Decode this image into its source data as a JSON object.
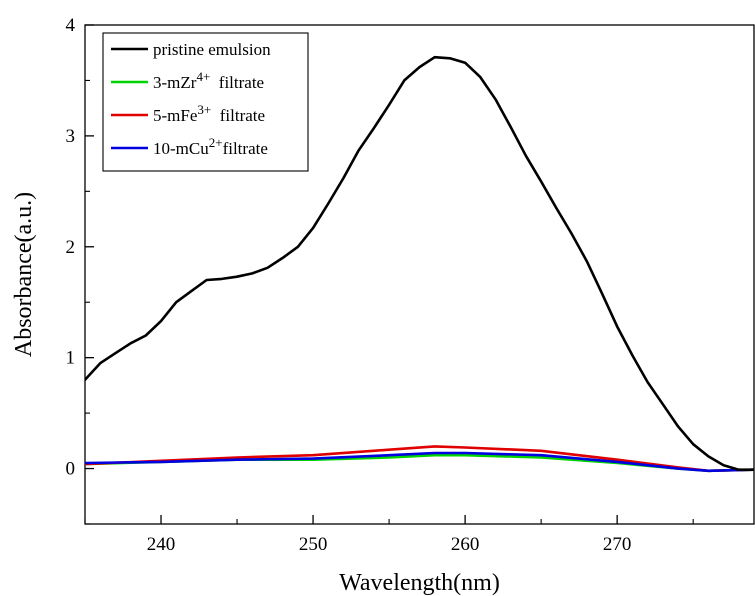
{
  "chart_data": {
    "type": "line",
    "title": "",
    "xlabel": "Wavelength(nm)",
    "ylabel": "Absorbance(a.u.)",
    "xlim": [
      235,
      279
    ],
    "ylim": [
      -0.5,
      4
    ],
    "x_ticks": [
      240,
      250,
      260,
      270
    ],
    "y_ticks": [
      0,
      1,
      2,
      3,
      4
    ],
    "grid": false,
    "legend_position": "top-left",
    "series": [
      {
        "name": "pristine emulsion",
        "legend_parts": [
          {
            "t": "pristine emulsion",
            "sup": false
          }
        ],
        "color": "#000000",
        "x": [
          235,
          236,
          237,
          238,
          239,
          240,
          241,
          242,
          243,
          244,
          245,
          246,
          247,
          248,
          249,
          250,
          251,
          252,
          253,
          254,
          255,
          256,
          257,
          258,
          259,
          260,
          261,
          262,
          263,
          264,
          265,
          266,
          267,
          268,
          269,
          270,
          271,
          272,
          273,
          274,
          275,
          276,
          277,
          278,
          279
        ],
        "y": [
          0.8,
          0.95,
          1.04,
          1.13,
          1.2,
          1.33,
          1.5,
          1.6,
          1.7,
          1.71,
          1.73,
          1.76,
          1.81,
          1.9,
          2.0,
          2.17,
          2.39,
          2.62,
          2.87,
          3.07,
          3.28,
          3.5,
          3.62,
          3.71,
          3.7,
          3.66,
          3.53,
          3.33,
          3.08,
          2.82,
          2.59,
          2.35,
          2.12,
          1.87,
          1.58,
          1.28,
          1.02,
          0.78,
          0.58,
          0.38,
          0.22,
          0.11,
          0.03,
          -0.01,
          -0.01
        ]
      },
      {
        "name": "3-mZr4+ filtrate",
        "legend_parts": [
          {
            "t": "3-mZr",
            "sup": false
          },
          {
            "t": "4+",
            "sup": true
          },
          {
            "t": "  filtrate",
            "sup": false
          }
        ],
        "color": "#00d400",
        "x": [
          235,
          240,
          245,
          250,
          255,
          258,
          260,
          265,
          270,
          274,
          276,
          279
        ],
        "y": [
          0.04,
          0.06,
          0.08,
          0.08,
          0.1,
          0.12,
          0.12,
          0.1,
          0.05,
          0.0,
          -0.02,
          -0.01
        ]
      },
      {
        "name": "5-mFe3+ filtrate",
        "legend_parts": [
          {
            "t": "5-mFe",
            "sup": false
          },
          {
            "t": "3+",
            "sup": true
          },
          {
            "t": "  filtrate",
            "sup": false
          }
        ],
        "color": "#e00000",
        "x": [
          235,
          240,
          245,
          250,
          255,
          258,
          260,
          265,
          270,
          274,
          276,
          279
        ],
        "y": [
          0.04,
          0.07,
          0.1,
          0.12,
          0.17,
          0.2,
          0.19,
          0.16,
          0.08,
          0.01,
          -0.02,
          -0.01
        ]
      },
      {
        "name": "10-mCu2+filtrate",
        "legend_parts": [
          {
            "t": "10-mCu",
            "sup": false
          },
          {
            "t": "2+",
            "sup": true
          },
          {
            "t": "filtrate",
            "sup": false
          }
        ],
        "color": "#0000e0",
        "x": [
          235,
          240,
          245,
          250,
          255,
          258,
          260,
          265,
          270,
          274,
          276,
          279
        ],
        "y": [
          0.05,
          0.06,
          0.08,
          0.09,
          0.12,
          0.14,
          0.14,
          0.12,
          0.06,
          0.0,
          -0.02,
          -0.01
        ]
      }
    ]
  }
}
